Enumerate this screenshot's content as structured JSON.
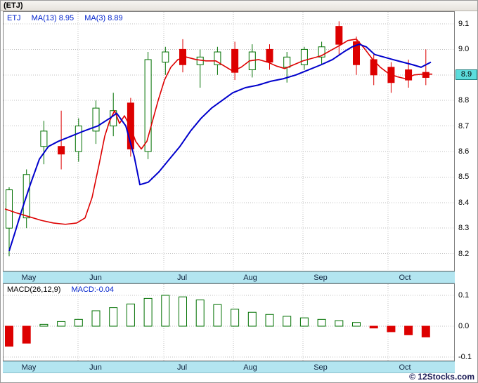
{
  "window": {
    "title": "(ETJ)"
  },
  "footer": {
    "copyright": "© 12Stocks.com"
  },
  "colors": {
    "up": "#007000",
    "down": "#dd0000",
    "ma_slow": "#0000cc",
    "ma_fast": "#dd0000",
    "strip": "#b3e5f0",
    "badge": "#5bdcdc",
    "grid": "#c0c0c0"
  },
  "chart_data": [
    {
      "type": "candlestick",
      "title": "(ETJ) weekly price",
      "legend": {
        "symbol": "ETJ",
        "ma13": "MA(13)  8.95",
        "ma3": "MA(3)  8.89"
      },
      "x_months": [
        "May",
        "Jun",
        "Jul",
        "Aug",
        "Sep",
        "Oct"
      ],
      "ylim": [
        8.13,
        9.15
      ],
      "yticks": [
        9.1,
        9.0,
        8.9,
        8.8,
        8.7,
        8.6,
        8.5,
        8.4,
        8.3,
        8.2
      ],
      "current_price_label": "8.9",
      "grid": true,
      "candles_ohlc": [
        [
          8.3,
          8.46,
          8.19,
          8.45
        ],
        [
          8.34,
          8.53,
          8.3,
          8.51
        ],
        [
          8.62,
          8.72,
          8.55,
          8.68
        ],
        [
          8.62,
          8.76,
          8.53,
          8.59
        ],
        [
          8.6,
          8.73,
          8.56,
          8.7
        ],
        [
          8.68,
          8.8,
          8.63,
          8.77
        ],
        [
          8.7,
          8.83,
          8.66,
          8.76
        ],
        [
          8.79,
          8.81,
          8.58,
          8.61
        ],
        [
          8.6,
          8.99,
          8.57,
          8.96
        ],
        [
          8.95,
          9.01,
          8.9,
          8.99
        ],
        [
          9.0,
          9.04,
          8.91,
          8.94
        ],
        [
          8.94,
          9.0,
          8.85,
          8.97
        ],
        [
          8.94,
          9.01,
          8.9,
          8.99
        ],
        [
          9.0,
          9.03,
          8.88,
          8.91
        ],
        [
          8.92,
          9.02,
          8.89,
          8.99
        ],
        [
          9.0,
          9.02,
          8.92,
          8.95
        ],
        [
          8.93,
          8.99,
          8.87,
          8.97
        ],
        [
          8.94,
          9.01,
          8.92,
          9.0
        ],
        [
          8.97,
          9.03,
          8.94,
          9.01
        ],
        [
          9.09,
          9.11,
          8.98,
          9.02
        ],
        [
          9.03,
          9.05,
          8.9,
          8.94
        ],
        [
          8.96,
          8.98,
          8.86,
          8.9
        ],
        [
          8.93,
          8.95,
          8.83,
          8.87
        ],
        [
          8.92,
          8.96,
          8.85,
          8.88
        ],
        [
          8.91,
          9.0,
          8.86,
          8.89
        ]
      ],
      "ma_lines": [
        {
          "name": "MA(3)",
          "value": 8.89,
          "color": "#dd0000",
          "width": 1.6,
          "data_name": "ma3-line",
          "points": [
            [
              6,
              8.375
            ],
            [
              22,
              8.36
            ],
            [
              40,
              8.345
            ],
            [
              58,
              8.33
            ],
            [
              75,
              8.32
            ],
            [
              92,
              8.315
            ],
            [
              108,
              8.32
            ],
            [
              120,
              8.34
            ],
            [
              130,
              8.42
            ],
            [
              140,
              8.55
            ],
            [
              148,
              8.66
            ],
            [
              155,
              8.72
            ],
            [
              162,
              8.76
            ],
            [
              169,
              8.71
            ],
            [
              176,
              8.74
            ],
            [
              184,
              8.7
            ],
            [
              192,
              8.64
            ],
            [
              200,
              8.61
            ],
            [
              208,
              8.64
            ],
            [
              216,
              8.72
            ],
            [
              224,
              8.8
            ],
            [
              233,
              8.88
            ],
            [
              242,
              8.93
            ],
            [
              252,
              8.96
            ],
            [
              264,
              8.97
            ],
            [
              278,
              8.96
            ],
            [
              292,
              8.955
            ],
            [
              306,
              8.955
            ],
            [
              318,
              8.935
            ],
            [
              330,
              8.915
            ],
            [
              342,
              8.93
            ],
            [
              354,
              8.955
            ],
            [
              367,
              8.96
            ],
            [
              380,
              8.95
            ],
            [
              392,
              8.935
            ],
            [
              404,
              8.925
            ],
            [
              417,
              8.94
            ],
            [
              430,
              8.955
            ],
            [
              443,
              8.965
            ],
            [
              456,
              8.975
            ],
            [
              469,
              8.995
            ],
            [
              482,
              9.015
            ],
            [
              494,
              9.035
            ],
            [
              506,
              9.04
            ],
            [
              517,
              9.005
            ],
            [
              528,
              8.965
            ],
            [
              540,
              8.93
            ],
            [
              552,
              8.905
            ],
            [
              564,
              8.893
            ],
            [
              576,
              8.885
            ],
            [
              588,
              8.9
            ],
            [
              600,
              8.903
            ],
            [
              614,
              8.903
            ]
          ]
        },
        {
          "name": "MA(13)",
          "value": 8.95,
          "color": "#0000cc",
          "width": 2,
          "data_name": "ma13-line",
          "points": [
            [
              12,
              8.21
            ],
            [
              20,
              8.28
            ],
            [
              30,
              8.37
            ],
            [
              42,
              8.47
            ],
            [
              55,
              8.57
            ],
            [
              68,
              8.62
            ],
            [
              82,
              8.64
            ],
            [
              100,
              8.66
            ],
            [
              118,
              8.68
            ],
            [
              138,
              8.7
            ],
            [
              155,
              8.73
            ],
            [
              165,
              8.75
            ],
            [
              178,
              8.7
            ],
            [
              190,
              8.58
            ],
            [
              198,
              8.47
            ],
            [
              210,
              8.48
            ],
            [
              225,
              8.52
            ],
            [
              240,
              8.57
            ],
            [
              255,
              8.62
            ],
            [
              270,
              8.68
            ],
            [
              285,
              8.73
            ],
            [
              300,
              8.77
            ],
            [
              315,
              8.8
            ],
            [
              330,
              8.83
            ],
            [
              348,
              8.85
            ],
            [
              366,
              8.86
            ],
            [
              384,
              8.875
            ],
            [
              402,
              8.885
            ],
            [
              420,
              8.9
            ],
            [
              438,
              8.92
            ],
            [
              456,
              8.94
            ],
            [
              472,
              8.96
            ],
            [
              488,
              8.99
            ],
            [
              500,
              9.01
            ],
            [
              510,
              9.02
            ],
            [
              520,
              9.01
            ],
            [
              532,
              8.98
            ],
            [
              545,
              8.97
            ],
            [
              558,
              8.96
            ],
            [
              572,
              8.95
            ],
            [
              586,
              8.94
            ],
            [
              598,
              8.93
            ],
            [
              612,
              8.95
            ]
          ]
        }
      ]
    },
    {
      "type": "bar",
      "title": "MACD(26,12,9)",
      "value_label": "MACD:-0.04",
      "ylim": [
        -0.125,
        0.136
      ],
      "yticks": [
        0.1,
        0.0,
        -0.1
      ],
      "grid": true,
      "bar_up_style": "hollow-green",
      "bar_down_style": "solid-red",
      "values": [
        -0.065,
        -0.055,
        0.006,
        0.015,
        0.022,
        0.05,
        0.06,
        0.072,
        0.09,
        0.1,
        0.095,
        0.085,
        0.07,
        0.055,
        0.045,
        0.038,
        0.032,
        0.027,
        0.022,
        0.018,
        0.012,
        -0.006,
        -0.018,
        -0.028,
        -0.035
      ]
    }
  ]
}
